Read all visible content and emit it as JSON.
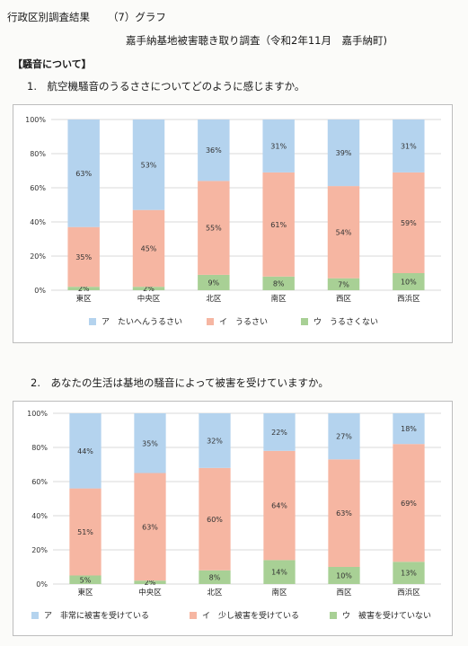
{
  "header": {
    "left": "行政区別調査結果",
    "right": "（7）グラフ"
  },
  "subtitle": "嘉手納基地被害聴き取り調査（令和2年11月　嘉手納町)",
  "section_title": "【騒音について】",
  "colors": {
    "series_a": "#b4d3ee",
    "series_i": "#f6b6a2",
    "series_u": "#a8d095",
    "grid": "#d9d9d9",
    "axis_text": "#333333"
  },
  "chart_data": [
    {
      "type": "bar",
      "stacked": true,
      "question": "1.　航空機騒音のうるささについてどのように感じますか。",
      "categories": [
        "東区",
        "中央区",
        "北区",
        "南区",
        "西区",
        "西浜区"
      ],
      "ylim": [
        0,
        100
      ],
      "yticks": [
        "0%",
        "20%",
        "40%",
        "60%",
        "80%",
        "100%"
      ],
      "legend_position": "bottom",
      "series": [
        {
          "name": "ウ　うるさくない",
          "key": "u",
          "values": [
            2,
            2,
            9,
            8,
            7,
            10
          ],
          "labels": [
            "2%",
            "2%",
            "9%",
            "8%",
            "7%",
            "10%"
          ]
        },
        {
          "name": "イ　うるさい",
          "key": "i",
          "values": [
            35,
            45,
            55,
            61,
            54,
            59
          ],
          "labels": [
            "35%",
            "45%",
            "55%",
            "61%",
            "54%",
            "59%"
          ]
        },
        {
          "name": "ア　たいへんうるさい",
          "key": "a",
          "values": [
            63,
            53,
            36,
            31,
            39,
            31
          ],
          "labels": [
            "63%",
            "53%",
            "36%",
            "31%",
            "39%",
            "31%"
          ]
        }
      ],
      "legend": [
        "ア　たいへんうるさい",
        "イ　うるさい",
        "ウ　うるさくない"
      ]
    },
    {
      "type": "bar",
      "stacked": true,
      "question": "2.　あなたの生活は基地の騒音によって被害を受けていますか。",
      "categories": [
        "東区",
        "中央区",
        "北区",
        "南区",
        "西区",
        "西浜区"
      ],
      "ylim": [
        0,
        100
      ],
      "yticks": [
        "0%",
        "20%",
        "40%",
        "60%",
        "80%",
        "100%"
      ],
      "legend_position": "bottom",
      "series": [
        {
          "name": "ウ　被害を受けていない",
          "key": "u",
          "values": [
            5,
            2,
            8,
            14,
            10,
            13
          ],
          "labels": [
            "5%",
            "2%",
            "8%",
            "14%",
            "10%",
            "13%"
          ]
        },
        {
          "name": "イ　少し被害を受けている",
          "key": "i",
          "values": [
            51,
            63,
            60,
            64,
            63,
            69
          ],
          "labels": [
            "51%",
            "63%",
            "60%",
            "64%",
            "63%",
            "69%"
          ]
        },
        {
          "name": "ア　非常に被害を受けている",
          "key": "a",
          "values": [
            44,
            35,
            32,
            22,
            27,
            18
          ],
          "labels": [
            "44%",
            "35%",
            "32%",
            "22%",
            "27%",
            "18%"
          ]
        }
      ],
      "legend": [
        "ア　非常に被害を受けている",
        "イ　少し被害を受けている",
        "ウ　被害を受けていない"
      ]
    }
  ]
}
